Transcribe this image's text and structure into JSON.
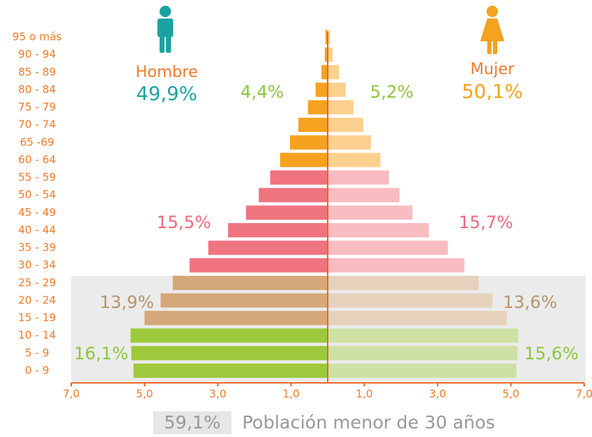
{
  "chart_data": {
    "type": "pyramid",
    "categories": [
      "95 o más",
      "90 - 94",
      "85 - 89",
      "80 - 84",
      "75 - 79",
      "70 - 74",
      "65 -69",
      "60 - 64",
      "55 - 59",
      "50 - 54",
      "45 - 49",
      "40 - 44",
      "35 - 39",
      "30 - 34",
      "25 - 29",
      "20 - 24",
      "15 - 19",
      "10 - 14",
      "5 - 9",
      "0 - 9"
    ],
    "series": [
      {
        "name": "Hombre",
        "total": "49,9%",
        "name_color": "#f07a2a",
        "total_color": "#1ba3a3",
        "values": [
          -0.06,
          -0.08,
          -0.17,
          -0.33,
          -0.54,
          -0.8,
          -1.03,
          -1.3,
          -1.57,
          -1.88,
          -2.23,
          -2.72,
          -3.26,
          -3.77,
          -4.23,
          -4.56,
          -5.0,
          -5.38,
          -5.36,
          -5.3
        ],
        "colors": [
          "#f4a21f",
          "#f4a21f",
          "#f4a21f",
          "#f4a21f",
          "#f4a21f",
          "#f4a21f",
          "#f4a21f",
          "#f4a21f",
          "#f07380",
          "#f07380",
          "#f07380",
          "#f07380",
          "#f07380",
          "#f07380",
          "#d4a878",
          "#d4a878",
          "#d4a878",
          "#9ec93c",
          "#9ec93c",
          "#9ec93c"
        ]
      },
      {
        "name": "Mujer",
        "total": "50,1%",
        "name_color": "#f07a2a",
        "total_color": "#f4a21f",
        "values": [
          0.06,
          0.14,
          0.31,
          0.49,
          0.7,
          0.97,
          1.18,
          1.44,
          1.67,
          1.96,
          2.31,
          2.76,
          3.28,
          3.73,
          4.12,
          4.5,
          4.89,
          5.2,
          5.18,
          5.15
        ],
        "colors": [
          "#fcd08e",
          "#fcd08e",
          "#fcd08e",
          "#fcd08e",
          "#fcd08e",
          "#fcd08e",
          "#fcd08e",
          "#fcd08e",
          "#f9bcc0",
          "#f9bcc0",
          "#f9bcc0",
          "#f9bcc0",
          "#f9bcc0",
          "#f9bcc0",
          "#e6d2bc",
          "#e6d2bc",
          "#e6d2bc",
          "#cfe0a3",
          "#cfe0a3",
          "#cfe0a3"
        ]
      }
    ],
    "annotations": [
      {
        "text": "4,4%",
        "color": "#8dc63f"
      },
      {
        "text": "5,2%",
        "color": "#8dc63f"
      },
      {
        "text": "15,5%",
        "color": "#ee6b7d"
      },
      {
        "text": "15,7%",
        "color": "#ee6b7d"
      },
      {
        "text": "13,9%",
        "color": "#b8946a"
      },
      {
        "text": "13,6%",
        "color": "#b8946a"
      },
      {
        "text": "16,1%",
        "color": "#8dc63f"
      },
      {
        "text": "15,6%",
        "color": "#8dc63f"
      }
    ],
    "highlight": {
      "value_label": "59,1%",
      "text": "Población menor de 30 años"
    },
    "xlim": [
      -7,
      7
    ],
    "xticks": [
      {
        "value": -7,
        "label": "7,0"
      },
      {
        "value": -5,
        "label": "5,0"
      },
      {
        "value": -3,
        "label": "3,0"
      },
      {
        "value": -1,
        "label": "1,0"
      },
      {
        "value": 1,
        "label": "1,0"
      },
      {
        "value": 3,
        "label": "3,0"
      },
      {
        "value": 5,
        "label": "5,0"
      },
      {
        "value": 7,
        "label": "7,0"
      }
    ],
    "axis_color": "#e8662a"
  }
}
